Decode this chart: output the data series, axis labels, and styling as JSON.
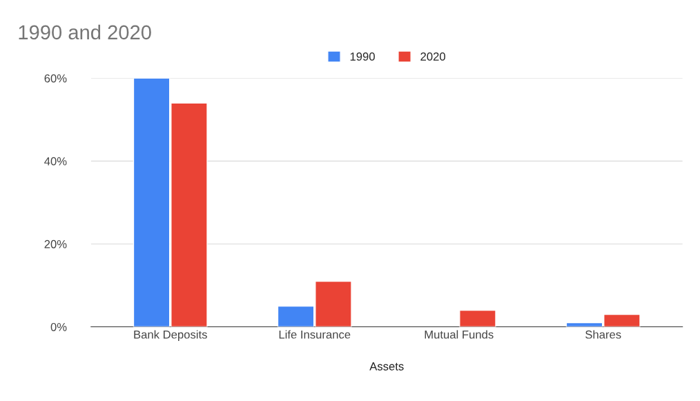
{
  "chart_data": {
    "type": "bar",
    "title": "1990 and 2020",
    "xlabel": "Assets",
    "categories": [
      "Bank Deposits",
      "Life Insurance",
      "Mutual Funds",
      "Shares"
    ],
    "series": [
      {
        "name": "1990",
        "color": "#4285f4",
        "values": [
          60,
          5,
          null,
          1
        ]
      },
      {
        "name": "2020",
        "color": "#ea4335",
        "values": [
          54,
          11,
          4,
          3
        ]
      }
    ],
    "ylim": [
      0,
      60
    ],
    "yticks": [
      {
        "value": 0,
        "label": "0%"
      },
      {
        "value": 20,
        "label": "20%"
      },
      {
        "value": 40,
        "label": "40%"
      },
      {
        "value": 60,
        "label": "60%"
      }
    ],
    "grid": "y",
    "legend": "top"
  }
}
